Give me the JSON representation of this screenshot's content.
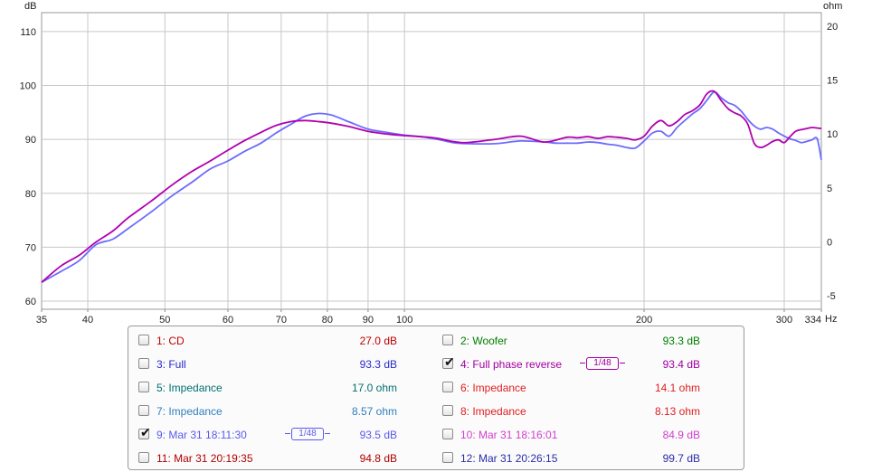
{
  "chart_data": {
    "type": "line",
    "x_scale": "log",
    "xlim": [
      35,
      334
    ],
    "ylim": [
      58.5,
      113.5
    ],
    "y2lim": [
      -6.25,
      21.25
    ],
    "ylabel": "dB",
    "y2label": "ohm",
    "x_unit": "Hz",
    "x_ticks": [
      35,
      40,
      50,
      60,
      70,
      80,
      90,
      100,
      200,
      300,
      334
    ],
    "y_ticks": [
      60,
      70,
      80,
      90,
      100,
      110
    ],
    "y2_ticks": [
      -5,
      0,
      5,
      10,
      15,
      20
    ],
    "y2_tick_labels": [
      "-5",
      "0",
      "5",
      "10",
      "15",
      "20"
    ],
    "grid": true,
    "series": [
      {
        "name": "4: Full phase reverse",
        "color": "#b000b0",
        "x": [
          35,
          37,
          39,
          41,
          43,
          45,
          48,
          51,
          54,
          57,
          60,
          63,
          66,
          69,
          72,
          75,
          78,
          81,
          85,
          90,
          95,
          100,
          105,
          110,
          115,
          120,
          130,
          140,
          150,
          160,
          165,
          170,
          175,
          180,
          185,
          190,
          195,
          200,
          205,
          210,
          215,
          220,
          225,
          230,
          235,
          240,
          245,
          250,
          255,
          260,
          265,
          270,
          275,
          280,
          285,
          290,
          295,
          300,
          305,
          310,
          315,
          320,
          325,
          330,
          334
        ],
        "y": [
          63.5,
          66.5,
          68.5,
          71,
          73,
          75.5,
          78.5,
          81.5,
          84,
          86,
          88,
          89.8,
          91.3,
          92.6,
          93.3,
          93.5,
          93.3,
          93,
          92.4,
          91.5,
          91,
          90.7,
          90.5,
          90.2,
          89.6,
          89.4,
          90,
          90.6,
          89.5,
          90.4,
          90.3,
          90.5,
          90.2,
          90.5,
          90.4,
          90.2,
          89.9,
          90.6,
          92.5,
          93.5,
          92.5,
          93.3,
          94.6,
          95.3,
          96.4,
          98.5,
          98.9,
          97.2,
          95.7,
          94.9,
          94.3,
          92.8,
          89.3,
          88.5,
          88.9,
          89.6,
          89.9,
          89.4,
          90.5,
          91.5,
          91.8,
          92,
          92.2,
          92.1,
          92
        ]
      },
      {
        "name": "9: Mar 31 18:11:30",
        "color": "#6b6bff",
        "x": [
          35,
          37,
          39,
          41,
          43,
          45,
          48,
          51,
          54,
          57,
          60,
          63,
          66,
          69,
          72,
          75,
          78,
          81,
          85,
          90,
          95,
          100,
          105,
          110,
          115,
          120,
          130,
          140,
          150,
          155,
          160,
          165,
          170,
          175,
          180,
          185,
          190,
          195,
          200,
          205,
          210,
          215,
          220,
          225,
          230,
          235,
          240,
          245,
          250,
          255,
          260,
          265,
          270,
          275,
          280,
          285,
          290,
          295,
          300,
          305,
          310,
          315,
          320,
          325,
          330,
          334
        ],
        "y": [
          63.5,
          65.5,
          67.5,
          70.5,
          71.5,
          73.5,
          76.5,
          79.5,
          82,
          84.5,
          86,
          87.8,
          89.3,
          91.2,
          92.8,
          94.3,
          94.8,
          94.5,
          93.3,
          91.9,
          91.3,
          90.8,
          90.5,
          90,
          89.4,
          89.2,
          89.2,
          89.7,
          89.5,
          89.3,
          89.3,
          89.3,
          89.5,
          89.4,
          89.1,
          88.9,
          88.5,
          88.4,
          89.7,
          91.2,
          91.5,
          90.6,
          92.2,
          93.5,
          94.7,
          95.7,
          97.3,
          98.8,
          97.7,
          96.8,
          96.3,
          95.2,
          93.7,
          92.5,
          91.9,
          92.2,
          91.9,
          91.2,
          90.6,
          90.1,
          89.8,
          89.4,
          89.6,
          89.9,
          90.1,
          86.2
        ]
      }
    ]
  },
  "legend": {
    "items": [
      {
        "label": "1: CD",
        "value": "27.0 dB",
        "color": "#c00000",
        "checked": false
      },
      {
        "label": "2: Woofer",
        "value": "93.3 dB",
        "color": "#008000",
        "checked": false
      },
      {
        "label": "3: Full",
        "value": "93.3 dB",
        "color": "#2b2bcc",
        "checked": false
      },
      {
        "label": "4: Full phase reverse",
        "value": "93.4 dB",
        "color": "#a000a0",
        "checked": true,
        "smoothing": "1/48"
      },
      {
        "label": "5: Impedance",
        "value": "17.0 ohm",
        "color": "#007070",
        "checked": false
      },
      {
        "label": "6: Impedance",
        "value": "14.1 ohm",
        "color": "#e02020",
        "checked": false
      },
      {
        "label": "7: Impedance",
        "value": "8.57 ohm",
        "color": "#2f7fbf",
        "checked": false
      },
      {
        "label": "8: Impedance",
        "value": "8.13 ohm",
        "color": "#e02020",
        "checked": false
      },
      {
        "label": "9: Mar 31 18:11:30",
        "value": "93.5 dB",
        "color": "#5a5aee",
        "checked": true,
        "smoothing": "1/48"
      },
      {
        "label": "10: Mar 31 18:16:01",
        "value": "84.9 dB",
        "color": "#d040d0",
        "checked": false
      },
      {
        "label": "11: Mar 31 20:19:35",
        "value": "94.8 dB",
        "color": "#b00000",
        "checked": false
      },
      {
        "label": "12: Mar 31 20:26:15",
        "value": "99.7 dB",
        "color": "#2b2baa",
        "checked": false
      }
    ]
  }
}
